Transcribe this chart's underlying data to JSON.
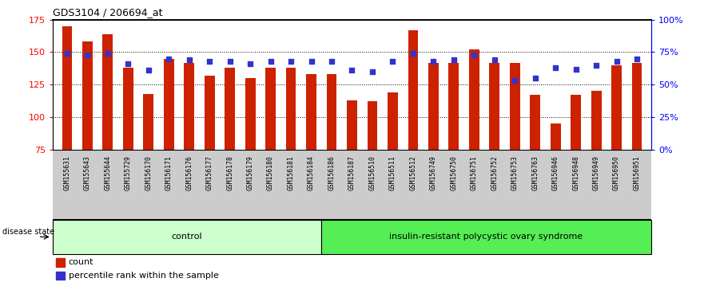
{
  "title": "GDS3104 / 206694_at",
  "samples": [
    "GSM155631",
    "GSM155643",
    "GSM155644",
    "GSM155729",
    "GSM156170",
    "GSM156171",
    "GSM156176",
    "GSM156177",
    "GSM156178",
    "GSM156179",
    "GSM156180",
    "GSM156181",
    "GSM156184",
    "GSM156186",
    "GSM156187",
    "GSM156510",
    "GSM156511",
    "GSM156512",
    "GSM156749",
    "GSM156750",
    "GSM156751",
    "GSM156752",
    "GSM156753",
    "GSM156763",
    "GSM156946",
    "GSM156948",
    "GSM156949",
    "GSM156950",
    "GSM156951"
  ],
  "count_values": [
    170,
    158,
    164,
    138,
    118,
    145,
    142,
    132,
    138,
    130,
    138,
    138,
    133,
    133,
    113,
    112,
    119,
    167,
    142,
    142,
    152,
    142,
    142,
    117,
    95,
    117,
    120,
    140,
    142
  ],
  "percentile_values": [
    74,
    73,
    74,
    66,
    61,
    70,
    69,
    68,
    68,
    66,
    68,
    68,
    68,
    68,
    61,
    60,
    68,
    74,
    68,
    69,
    73,
    69,
    53,
    55,
    63,
    62,
    65,
    68,
    70
  ],
  "control_count": 13,
  "disease_count": 16,
  "control_label": "control",
  "disease_label": "insulin-resistant polycystic ovary syndrome",
  "ylim_left": [
    75,
    175
  ],
  "ylim_right": [
    0,
    100
  ],
  "yticks_left": [
    75,
    100,
    125,
    150,
    175
  ],
  "yticks_right": [
    0,
    25,
    50,
    75,
    100
  ],
  "yticklabels_right": [
    "0%",
    "25%",
    "50%",
    "75%",
    "100%"
  ],
  "bar_color": "#cc2200",
  "percentile_color": "#3333cc",
  "control_bg": "#ccffcc",
  "disease_bg": "#55ee55",
  "ticklabel_bg": "#cccccc",
  "bar_width": 0.5,
  "legend_count_label": "count",
  "legend_percentile_label": "percentile rank within the sample"
}
